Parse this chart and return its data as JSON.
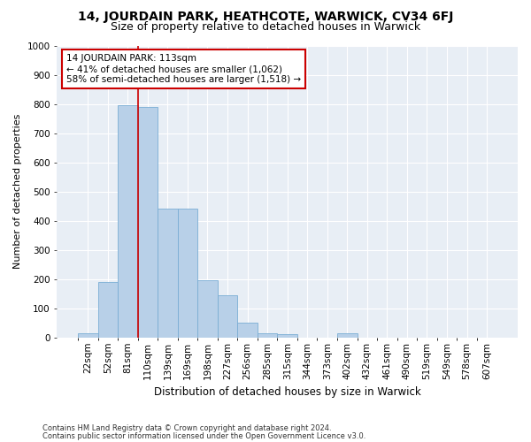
{
  "title": "14, JOURDAIN PARK, HEATHCOTE, WARWICK, CV34 6FJ",
  "subtitle": "Size of property relative to detached houses in Warwick",
  "xlabel": "Distribution of detached houses by size in Warwick",
  "ylabel": "Number of detached properties",
  "footnote1": "Contains HM Land Registry data © Crown copyright and database right 2024.",
  "footnote2": "Contains public sector information licensed under the Open Government Licence v3.0.",
  "bar_labels": [
    "22sqm",
    "52sqm",
    "81sqm",
    "110sqm",
    "139sqm",
    "169sqm",
    "198sqm",
    "227sqm",
    "256sqm",
    "285sqm",
    "315sqm",
    "344sqm",
    "373sqm",
    "402sqm",
    "432sqm",
    "461sqm",
    "490sqm",
    "519sqm",
    "549sqm",
    "578sqm",
    "607sqm"
  ],
  "bar_values": [
    15,
    190,
    795,
    790,
    440,
    440,
    195,
    145,
    50,
    15,
    10,
    0,
    0,
    15,
    0,
    0,
    0,
    0,
    0,
    0,
    0
  ],
  "bar_color": "#b8d0e8",
  "bar_edge_color": "#7aadd4",
  "marker_line_color": "#cc0000",
  "annotation_text": "14 JOURDAIN PARK: 113sqm\n← 41% of detached houses are smaller (1,062)\n58% of semi-detached houses are larger (1,518) →",
  "annotation_box_color": "#ffffff",
  "annotation_box_edge": "#cc0000",
  "ylim": [
    0,
    1000
  ],
  "yticks": [
    0,
    100,
    200,
    300,
    400,
    500,
    600,
    700,
    800,
    900,
    1000
  ],
  "plot_background": "#e8eef5",
  "title_fontsize": 10,
  "subtitle_fontsize": 9,
  "axis_fontsize": 8,
  "tick_fontsize": 7.5,
  "footnote_fontsize": 6
}
